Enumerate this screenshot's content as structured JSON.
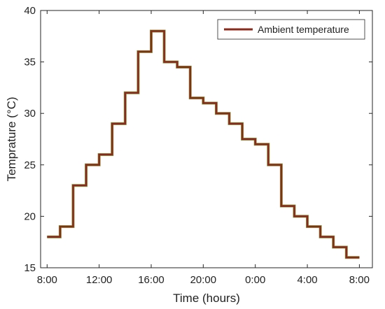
{
  "chart_data": {
    "type": "line",
    "step": true,
    "xlabel": "Time (hours)",
    "ylabel": "Temprature (°C)",
    "x_ticks": [
      "8:00",
      "12:00",
      "16:00",
      "20:00",
      "0:00",
      "4:00",
      "8:00"
    ],
    "x_tick_hours": [
      0,
      4,
      8,
      12,
      16,
      20,
      24
    ],
    "xlim_hours": [
      -0.5,
      25
    ],
    "ylim": [
      15,
      40
    ],
    "y_ticks": [
      15,
      20,
      25,
      30,
      35,
      40
    ],
    "grid": false,
    "legend_position": "top-right",
    "series": [
      {
        "name": "Ambient temperature",
        "color": "#8b2a1a",
        "x_hours": [
          0,
          1,
          2,
          3,
          4,
          5,
          6,
          7,
          8,
          9,
          10,
          11,
          12,
          13,
          14,
          15,
          16,
          17,
          18,
          19,
          20,
          21,
          22,
          23,
          24
        ],
        "values": [
          18,
          19,
          23,
          25,
          26,
          29,
          32,
          36,
          38,
          35,
          34.5,
          31.5,
          31,
          30,
          29,
          27.5,
          27,
          25,
          21,
          20,
          19,
          18,
          17,
          16,
          16
        ],
        "time_labels": [
          "8:00",
          "9:00",
          "10:00",
          "11:00",
          "12:00",
          "13:00",
          "14:00",
          "15:00",
          "16:00",
          "17:00",
          "18:00",
          "19:00",
          "20:00",
          "21:00",
          "22:00",
          "23:00",
          "0:00",
          "1:00",
          "2:00",
          "3:00",
          "4:00",
          "5:00",
          "6:00",
          "7:00",
          "8:00"
        ]
      }
    ]
  }
}
